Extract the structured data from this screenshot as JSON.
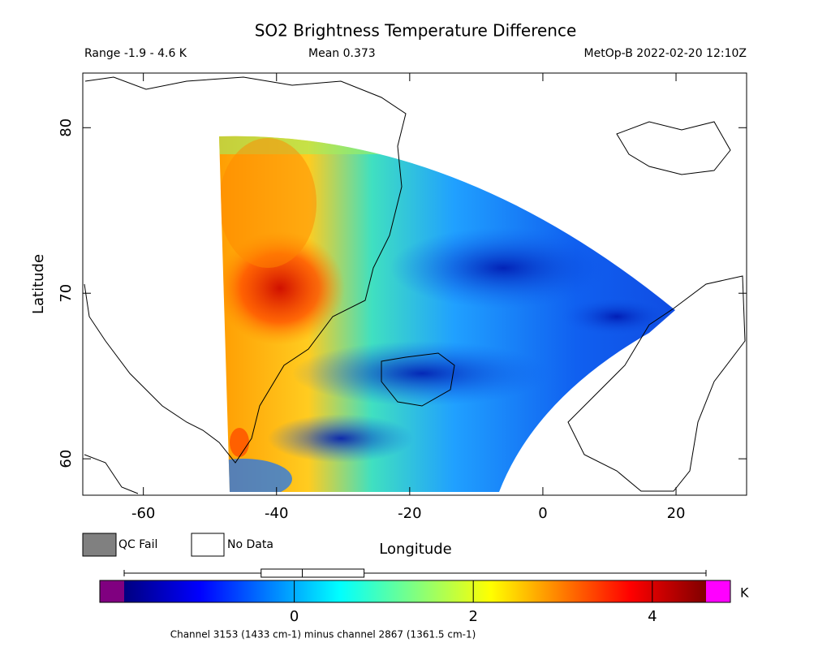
{
  "header": {
    "title": "SO2 Brightness Temperature Difference",
    "range": "Range -1.9 - 4.6 K",
    "mean": "Mean 0.373",
    "source": "MetOp-B 2022-02-20 12:10Z"
  },
  "map": {
    "x_label": "Longitude",
    "y_label": "Latitude",
    "xlim": [
      -69.1,
      30.6
    ],
    "ylim": [
      57.8,
      83.3
    ],
    "xticks": [
      -60,
      -40,
      -20,
      0,
      20
    ],
    "yticks": [
      60,
      70,
      80
    ]
  },
  "legend": [
    "QC Fail",
    "No Data"
  ],
  "colorbar": {
    "lim": [
      -1.9,
      4.6
    ],
    "ticks": [
      0,
      2,
      4
    ],
    "unit": "K",
    "boxplot": {
      "min": -1.9,
      "q1": -0.37,
      "median": 0.09,
      "q3": 0.78,
      "max": 4.6
    }
  },
  "footnote": "Channel 3153 (1433 cm-1) minus channel 2867 (1361.5 cm-1)"
}
